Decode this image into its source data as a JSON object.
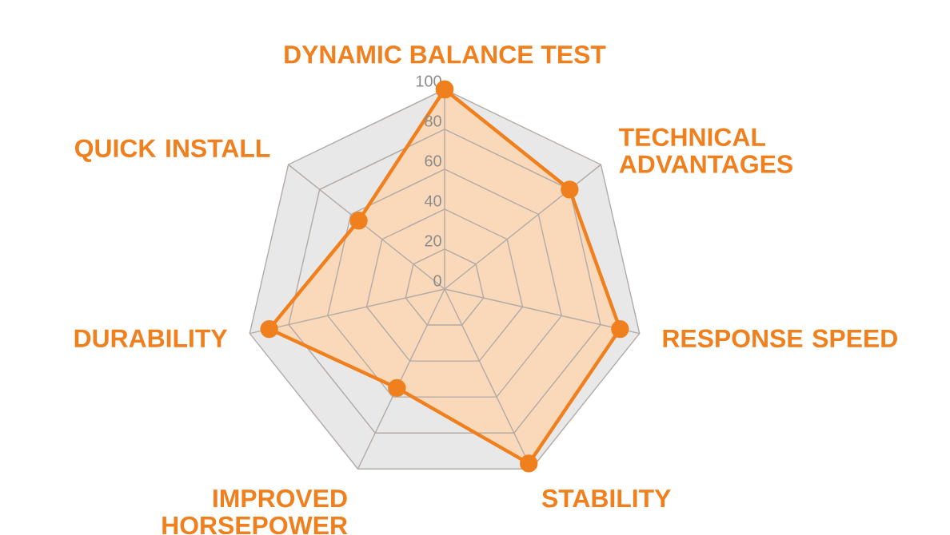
{
  "chart_data": {
    "type": "radar",
    "categories": [
      "DYNAMIC BALANCE TEST",
      "TECHNICAL ADVANTAGES",
      "RESPONSE SPEED",
      "STABILITY",
      "IMPROVED HORSEPOWER",
      "DURABILITY",
      "QUICK INSTALL"
    ],
    "series": [
      {
        "color": "#f07f1e",
        "values": [
          100,
          80,
          90,
          97,
          55,
          90,
          55
        ]
      }
    ],
    "ylim": [
      0,
      100
    ],
    "yticks": [
      0,
      20,
      40,
      60,
      80,
      100
    ],
    "marker": "circle",
    "grid": true
  }
}
